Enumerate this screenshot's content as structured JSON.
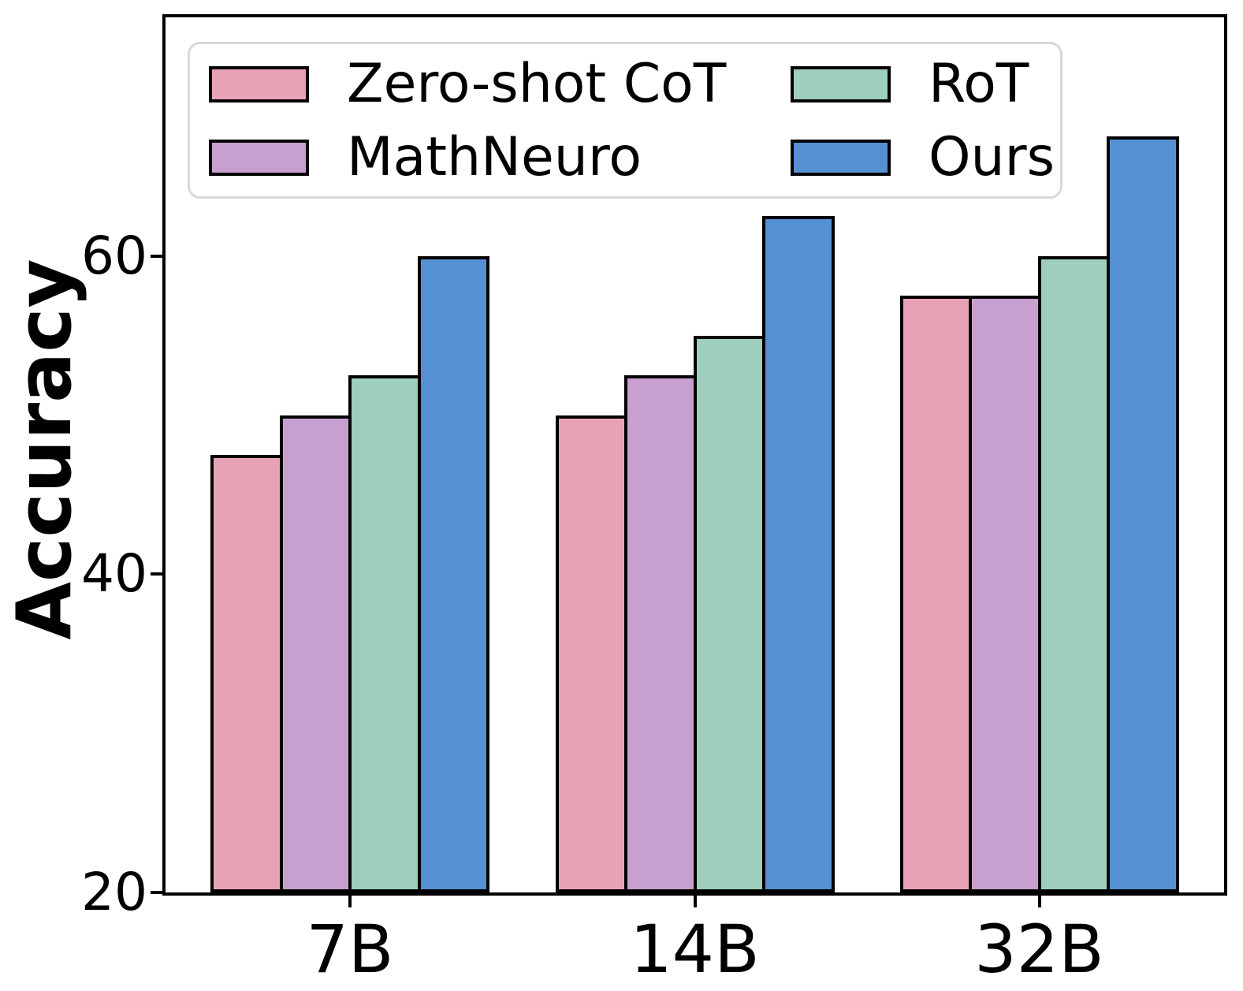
{
  "figure": {
    "background": "#ffffff",
    "text_color": "#000000",
    "spine_color": "#000000",
    "legend_border_color": "#D9D9D9"
  },
  "chart_data": {
    "type": "bar",
    "title": "",
    "xlabel": "",
    "ylabel": "Accuracy",
    "categories": [
      "7B",
      "14B",
      "32B"
    ],
    "series": [
      {
        "name": "Zero-shot CoT",
        "color": "#E8A2B6",
        "values": [
          47.5,
          50.0,
          57.5
        ]
      },
      {
        "name": "MathNeuro",
        "color": "#C7A0CF",
        "values": [
          50.0,
          52.5,
          57.5
        ]
      },
      {
        "name": "RoT",
        "color": "#9DCFBC",
        "values": [
          52.5,
          55.0,
          60.0
        ]
      },
      {
        "name": "Ours",
        "color": "#5590D3",
        "values": [
          60.0,
          62.5,
          67.5
        ]
      }
    ],
    "ylim": [
      20,
      75
    ],
    "yticks": [
      20,
      40,
      60
    ],
    "bar_edge_color": "#000000",
    "grid": false,
    "legend_position": "upper left",
    "legend_columns": 2,
    "legend_row_major_order": [
      "Zero-shot CoT",
      "RoT",
      "MathNeuro",
      "Ours"
    ]
  }
}
